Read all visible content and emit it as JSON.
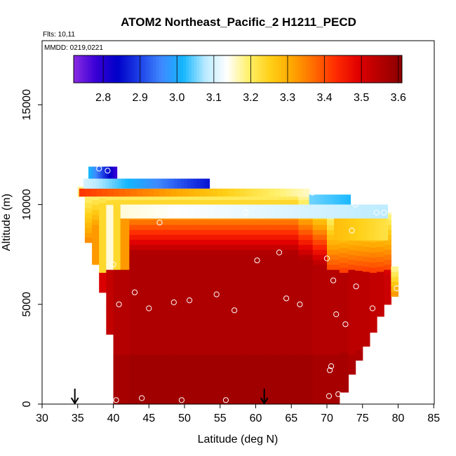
{
  "chart_data": {
    "type": "heatmap",
    "title": "ATOM2 Northeast_Pacific_2 H1211_PECD",
    "flights_label": "Flts: 10,11",
    "dates_label": "MMDD: 0219,0221",
    "xlabel": "Latitude (deg N)",
    "ylabel": "Altitude (m)",
    "xlim": [
      30,
      85
    ],
    "ylim": [
      0,
      17500
    ],
    "xticks": [
      30,
      35,
      40,
      45,
      50,
      55,
      60,
      65,
      70,
      75,
      80,
      85
    ],
    "yticks": [
      0,
      5000,
      10000,
      15000
    ],
    "colorbar": {
      "range": [
        2.72,
        3.61
      ],
      "ticks": [
        2.8,
        2.9,
        3.0,
        3.1,
        3.2,
        3.3,
        3.4,
        3.5,
        3.6
      ],
      "tick_labels": [
        "2.8",
        "2.9",
        "3.0",
        "3.1",
        "3.2",
        "3.3",
        "3.4",
        "3.5",
        "3.6"
      ],
      "colors": [
        "#8a2be2",
        "#3a00d6",
        "#0000c8",
        "#1d3fe6",
        "#3f88ff",
        "#13b6ff",
        "#b8eaff",
        "#ffffff",
        "#fff06a",
        "#ffcf16",
        "#ffa500",
        "#ff6a00",
        "#ff2a00",
        "#e00000",
        "#b40000",
        "#8b0000"
      ]
    },
    "grid": false,
    "columns": [
      {
        "lat": 35.5,
        "bottom": 10400,
        "top": 10900,
        "core": 3.32
      },
      {
        "lat": 36.5,
        "bottom": 8100,
        "top": 10700,
        "core": 3.38
      },
      {
        "lat": 37.5,
        "bottom": 7000,
        "top": 10700,
        "core": 3.44
      },
      {
        "lat": 38.5,
        "bottom": 5600,
        "top": 10700,
        "core": 3.5
      },
      {
        "lat": 39.5,
        "bottom": 3500,
        "top": 10700,
        "core": 3.53
      },
      {
        "lat": 40.5,
        "bottom": 0,
        "top": 10700,
        "core": 3.55
      },
      {
        "lat": 41.5,
        "bottom": 0,
        "top": 10700,
        "core": 3.55
      },
      {
        "lat": 43,
        "bottom": 0,
        "top": 10700,
        "core": 3.56
      },
      {
        "lat": 45,
        "bottom": 0,
        "top": 10700,
        "core": 3.56
      },
      {
        "lat": 47,
        "bottom": 0,
        "top": 10700,
        "core": 3.56
      },
      {
        "lat": 49,
        "bottom": 0,
        "top": 10700,
        "core": 3.56
      },
      {
        "lat": 51,
        "bottom": 0,
        "top": 10700,
        "core": 3.56
      },
      {
        "lat": 53,
        "bottom": 0,
        "top": 10700,
        "core": 3.56
      },
      {
        "lat": 55,
        "bottom": 0,
        "top": 10700,
        "core": 3.56
      },
      {
        "lat": 57,
        "bottom": 0,
        "top": 10700,
        "core": 3.56
      },
      {
        "lat": 59,
        "bottom": 0,
        "top": 10700,
        "core": 3.56
      },
      {
        "lat": 61,
        "bottom": 0,
        "top": 10700,
        "core": 3.56
      },
      {
        "lat": 63,
        "bottom": 0,
        "top": 10700,
        "core": 3.56
      },
      {
        "lat": 65,
        "bottom": 0,
        "top": 10700,
        "core": 3.56
      },
      {
        "lat": 67,
        "bottom": 0,
        "top": 10400,
        "core": 3.56
      },
      {
        "lat": 69,
        "bottom": 0,
        "top": 10100,
        "core": 3.55
      },
      {
        "lat": 71,
        "bottom": 0,
        "top": 10100,
        "core": 3.55
      },
      {
        "lat": 72.5,
        "bottom": 600,
        "top": 10100,
        "core": 3.55
      },
      {
        "lat": 73.5,
        "bottom": 1500,
        "top": 9800,
        "core": 3.54
      },
      {
        "lat": 74.5,
        "bottom": 2200,
        "top": 9800,
        "core": 3.54
      },
      {
        "lat": 75.5,
        "bottom": 2900,
        "top": 9800,
        "core": 3.54
      },
      {
        "lat": 76.5,
        "bottom": 3600,
        "top": 9800,
        "core": 3.53
      },
      {
        "lat": 77.5,
        "bottom": 4400,
        "top": 9800,
        "core": 3.53
      },
      {
        "lat": 78.5,
        "bottom": 5000,
        "top": 9600,
        "core": 3.52
      },
      {
        "lat": 79.5,
        "bottom": 5400,
        "top": 6900,
        "core": 3.52
      }
    ],
    "upper_layers": [
      {
        "lat_start": 35.2,
        "lat_end": 67.5,
        "bottom": 10400,
        "top": 10800,
        "value_start": 3.42,
        "value_end": 3.16
      },
      {
        "lat_start": 35.8,
        "lat_end": 53.5,
        "bottom": 10800,
        "top": 11300,
        "value_start": 3.1,
        "value_end": 2.86
      },
      {
        "lat_start": 36.5,
        "lat_end": 40.5,
        "bottom": 11300,
        "top": 11900,
        "value_start": 3.02,
        "value_end": 2.78
      },
      {
        "lat_start": 67.5,
        "lat_end": 73.3,
        "bottom": 10000,
        "top": 10500,
        "value_start": 3.05,
        "value_end": 3.02
      },
      {
        "lat_start": 41,
        "lat_end": 78.5,
        "bottom": 9300,
        "top": 10000,
        "value_start": 3.15,
        "value_end": 3.08
      },
      {
        "lat_start": 71,
        "lat_end": 78.5,
        "bottom": 8200,
        "top": 9300,
        "value_start": 3.28,
        "value_end": 3.22
      }
    ],
    "points": [
      {
        "lat": 38,
        "alt": 11800
      },
      {
        "lat": 39.2,
        "alt": 11700
      },
      {
        "lat": 40,
        "alt": 7000
      },
      {
        "lat": 40.8,
        "alt": 5000
      },
      {
        "lat": 43,
        "alt": 5600
      },
      {
        "lat": 45,
        "alt": 4800
      },
      {
        "lat": 46.5,
        "alt": 9100
      },
      {
        "lat": 48.5,
        "alt": 5100
      },
      {
        "lat": 50.7,
        "alt": 5200
      },
      {
        "lat": 54.5,
        "alt": 5500
      },
      {
        "lat": 57,
        "alt": 4700
      },
      {
        "lat": 58.6,
        "alt": 9600
      },
      {
        "lat": 60.2,
        "alt": 7200
      },
      {
        "lat": 63.3,
        "alt": 7600
      },
      {
        "lat": 64.3,
        "alt": 5300
      },
      {
        "lat": 66.2,
        "alt": 5000
      },
      {
        "lat": 68,
        "alt": 10600
      },
      {
        "lat": 70,
        "alt": 7300
      },
      {
        "lat": 70.9,
        "alt": 6200
      },
      {
        "lat": 71.3,
        "alt": 4500
      },
      {
        "lat": 72.6,
        "alt": 4000
      },
      {
        "lat": 73.5,
        "alt": 8700
      },
      {
        "lat": 74,
        "alt": 10000
      },
      {
        "lat": 74.1,
        "alt": 5900
      },
      {
        "lat": 76.4,
        "alt": 4800
      },
      {
        "lat": 77,
        "alt": 9600
      },
      {
        "lat": 78,
        "alt": 9600
      },
      {
        "lat": 79.8,
        "alt": 5800
      },
      {
        "lat": 70.4,
        "alt": 1700
      },
      {
        "lat": 70.6,
        "alt": 1900
      },
      {
        "lat": 40.4,
        "alt": 200
      },
      {
        "lat": 44,
        "alt": 300
      },
      {
        "lat": 49.6,
        "alt": 200
      },
      {
        "lat": 55.8,
        "alt": 200
      },
      {
        "lat": 70.3,
        "alt": 400
      },
      {
        "lat": 71.6,
        "alt": 500
      }
    ],
    "arrows": [
      {
        "lat": 34.6,
        "alt": 0
      },
      {
        "lat": 61.2,
        "alt": 0
      }
    ]
  }
}
